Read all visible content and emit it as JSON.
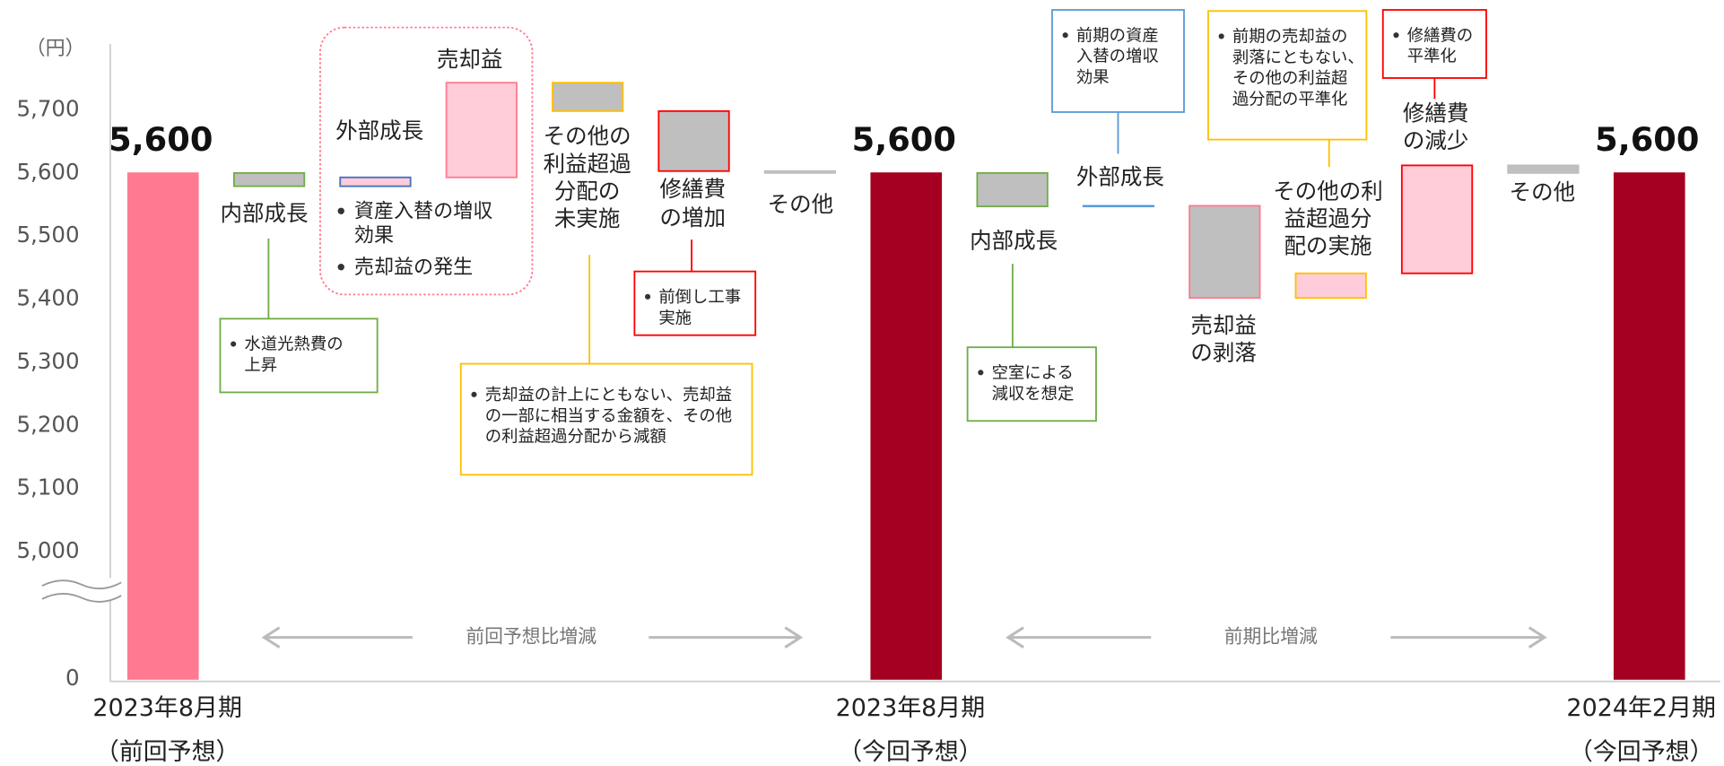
{
  "chart_data": {
    "type": "waterfall",
    "y_unit_label": "（円）",
    "categories": [
      [
        "2023年8月期",
        "（前回予想）"
      ],
      [
        "内部成長"
      ],
      [
        "外部成長"
      ],
      [
        "売却益"
      ],
      [
        "その他の",
        "利益超過",
        "分配の",
        "未実施"
      ],
      [
        "修繕費",
        "の増加"
      ],
      [
        "その他"
      ],
      [
        "2023年8月期",
        "（今回予想）"
      ],
      [
        "内部成長"
      ],
      [
        "外部成長"
      ],
      [
        "売却益",
        "の剥落"
      ],
      [
        "その他の利",
        "益超過分",
        "配の実施"
      ],
      [
        "修繕費",
        "の減少"
      ],
      [
        "その他"
      ],
      [
        "2024年2月期",
        "（今回予想）"
      ]
    ],
    "values": [
      5600,
      -21,
      14,
      150,
      -45,
      -95,
      -3,
      5600,
      -53,
      1,
      -146,
      39,
      171,
      -12,
      5600
    ],
    "is_total": [
      true,
      false,
      false,
      false,
      false,
      false,
      false,
      true,
      false,
      false,
      false,
      false,
      false,
      false,
      true
    ],
    "value_labels": [
      "5,600",
      null,
      null,
      null,
      null,
      null,
      null,
      "5,600",
      null,
      null,
      null,
      null,
      null,
      null,
      "5,600"
    ],
    "fills": [
      "#ff7a90",
      "#bfbfbf",
      "#ffccd9",
      "#ffccd9",
      "#bfbfbf",
      "#bfbfbf",
      "#bfbfbf",
      "#a50021",
      "#bfbfbf",
      "#5b9bd5",
      "#bfbfbf",
      "#ffccd9",
      "#ffccd9",
      "#bfbfbf",
      "#a50021"
    ],
    "strokes": [
      "#ff7a90",
      "#70ad47",
      "#4472c4",
      "#ff7a90",
      "#ffc000",
      "#ff0000",
      "#bfbfbf",
      "#a50021",
      "#70ad47",
      "#5b9bd5",
      "#ff7a90",
      "#ffc000",
      "#ff0000",
      "#bfbfbf",
      "#a50021"
    ],
    "ylim": [
      0,
      5780
    ],
    "yticks": [
      0,
      {
        "value": 5000,
        "label": "5,000"
      },
      {
        "value": 5100,
        "label": "5,100"
      },
      {
        "value": 5200,
        "label": "5,200"
      },
      {
        "value": 5300,
        "label": "5,300"
      },
      {
        "value": 5400,
        "label": "5,400"
      },
      {
        "value": 5500,
        "label": "5,500"
      },
      {
        "value": 5600,
        "label": "5,600"
      },
      {
        "value": 5700,
        "label": "5,700"
      }
    ],
    "axis_break": true,
    "annotations": [
      {
        "color": "#70ad47",
        "bullets": [
          [
            "水道光熱費の",
            "上昇"
          ]
        ]
      },
      {
        "color": "#ffc000",
        "bullets": [
          [
            "売却益の計上にともない、売却益",
            "の一部に相当する金額を、その他",
            "の利益超過分配から減額"
          ]
        ]
      },
      {
        "color": "#ff0000",
        "bullets": [
          [
            "前倒し工事",
            "実施"
          ]
        ]
      },
      {
        "color": "#ff7a90",
        "bullets": [
          [
            "資産入替の増収",
            "効果"
          ],
          [
            "売却益の発生"
          ]
        ]
      },
      {
        "color": "#70ad47",
        "bullets": [
          [
            "空室による",
            "減収を想定"
          ]
        ]
      },
      {
        "color": "#5b9bd5",
        "bullets": [
          [
            "前期の資産",
            "入替の増収",
            "効果"
          ]
        ]
      },
      {
        "color": "#ffc000",
        "bullets": [
          [
            "前期の売却益の",
            "剥落にともない、",
            "その他の利益超",
            "過分配の平準化"
          ]
        ]
      },
      {
        "color": "#ff0000",
        "bullets": [
          [
            "修繕費の",
            "平準化"
          ]
        ]
      }
    ],
    "comparisons": [
      "前回予想比増減",
      "前期比増減"
    ]
  }
}
